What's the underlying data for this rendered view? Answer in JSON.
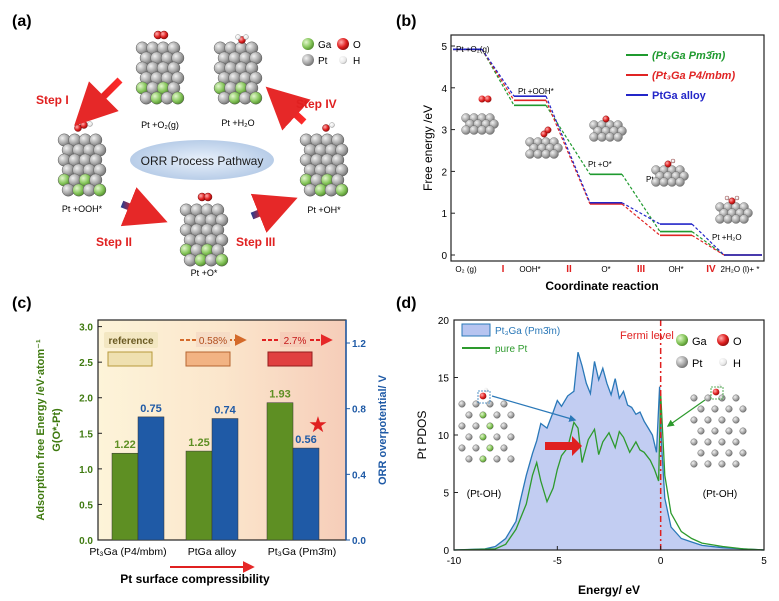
{
  "panels": {
    "a": {
      "label": "(a)",
      "center_text": "ORR Process Pathway",
      "steps": [
        "Step I",
        "Step II",
        "Step III",
        "Step IV"
      ],
      "states": [
        "Pt +O₂(g)",
        "Pt +H₂O",
        "Pt +OOH*",
        "Pt +O*",
        "Pt +OH*"
      ],
      "legend": [
        {
          "name": "Ga",
          "color": "#7dc35b"
        },
        {
          "name": "O",
          "color": "#d62020"
        },
        {
          "name": "Pt",
          "color": "#9a9a9a"
        },
        {
          "name": "H",
          "color": "#f2f2f2"
        }
      ]
    },
    "b": {
      "label": "(b)"
    },
    "c": {
      "label": "(c)",
      "tags": [
        "reference",
        "0.58%",
        "2.7%"
      ]
    },
    "d": {
      "label": "(d)"
    }
  },
  "chart_data": [
    {
      "id": "b",
      "type": "line",
      "xlabel": "Coordinate reaction",
      "ylabel": "Free energy /eV",
      "ylim": [
        0,
        5
      ],
      "yticks": [
        0,
        1,
        2,
        3,
        4,
        5
      ],
      "categories": [
        "O₂ (g)",
        "OOH*",
        "O*",
        "OH*",
        "2H₂O (l)+ *"
      ],
      "step_labels": [
        "I",
        "II",
        "III",
        "IV"
      ],
      "state_labels": [
        "Pt +O₂(g)",
        "Pt +OOH*",
        "Pt +O*",
        "Pt +OH*",
        "Pt +H₂O"
      ],
      "series": [
        {
          "name": "(Pt₃Ga Pm3̄m)",
          "color": "#1f9a2f",
          "values": [
            4.92,
            3.58,
            1.93,
            0.56,
            0
          ]
        },
        {
          "name": "(Pt₃Ga P4/mbm)",
          "color": "#e02424",
          "values": [
            4.92,
            3.7,
            1.22,
            0.47,
            0
          ]
        },
        {
          "name": "PtGa alloy",
          "color": "#2326c8",
          "values": [
            4.92,
            3.8,
            1.25,
            0.74,
            0
          ]
        }
      ],
      "legend_position": "top-right"
    },
    {
      "id": "c",
      "type": "bar",
      "xlabel": "Pt surface compressibility",
      "ylabel": "Adsorption free Energy /eV·atom⁻¹",
      "ylabel_prefix": "G(O*-Pt)",
      "y2label": "ORR overpotential/ V",
      "categories": [
        "Pt₃Ga (P4/mbm)",
        "PtGa alloy",
        "Pt₃Ga (Pm3̄m)"
      ],
      "ylim": [
        0,
        3.0
      ],
      "yticks": [
        "0.0",
        "0.5",
        "1.0",
        "1.5",
        "2.0",
        "2.5",
        "3.0"
      ],
      "y2lim": [
        0,
        1.3
      ],
      "y2ticks": [
        "0.0",
        "0.4",
        "0.8",
        "1.2"
      ],
      "series": [
        {
          "name": "G(O*-Pt)",
          "axis": "left",
          "color": "#5e8f23",
          "values": [
            1.22,
            1.25,
            1.93
          ],
          "labels": [
            "1.22",
            "1.25",
            "1.93"
          ]
        },
        {
          "name": "ORR overpotential",
          "axis": "right",
          "color": "#1f5aa6",
          "values": [
            0.75,
            0.74,
            0.56
          ],
          "labels": [
            "0.75",
            "0.74",
            "0.56"
          ]
        }
      ]
    },
    {
      "id": "d",
      "type": "line",
      "xlabel": "Energy/ eV",
      "ylabel": "Pt PDOS",
      "xlim": [
        -10,
        5
      ],
      "ylim": [
        0,
        20
      ],
      "xticks": [
        -10,
        -5,
        0,
        5
      ],
      "yticks": [
        0,
        5,
        10,
        15,
        20
      ],
      "annotation": "Fermi level",
      "insets": [
        "(Pt-OH)",
        "(Pt-OH)"
      ],
      "legend": [
        "Pt₃Ga (Pm3̄m)",
        "pure Pt"
      ],
      "atom_legend": [
        "Ga",
        "O",
        "Pt",
        "H"
      ],
      "series": [
        {
          "name": "Pt₃Ga (Pm3̄m)",
          "color": "#2a78b8",
          "fill": "#b7c4f0",
          "x": [
            -10,
            -8.5,
            -8,
            -7.5,
            -7,
            -6.8,
            -6.5,
            -6.2,
            -6,
            -5.8,
            -5.5,
            -5.2,
            -5,
            -4.8,
            -4.5,
            -4.2,
            -4,
            -3.8,
            -3.6,
            -3.4,
            -3.2,
            -3,
            -2.8,
            -2.6,
            -2.4,
            -2.2,
            -2,
            -1.8,
            -1.6,
            -1.4,
            -1.2,
            -1,
            -0.8,
            -0.6,
            -0.4,
            -0.2,
            -0.05,
            0.05,
            0.2,
            0.5,
            1,
            1.5,
            2,
            3,
            4,
            5
          ],
          "y": [
            0,
            0.1,
            0.3,
            1.0,
            2.5,
            4.2,
            6.5,
            8.4,
            9.5,
            11.0,
            10.6,
            12.0,
            13.0,
            12.5,
            13.4,
            13.8,
            17.2,
            16.0,
            14.5,
            13.6,
            16.4,
            14.8,
            15.8,
            14.5,
            13.5,
            14.9,
            13.2,
            13.8,
            12.6,
            12.4,
            11.8,
            12.0,
            11.2,
            10.6,
            10.0,
            8.5,
            14.2,
            9.0,
            4.5,
            2.0,
            1.0,
            0.7,
            0.4,
            0.2,
            0.1,
            0
          ]
        },
        {
          "name": "pure Pt",
          "color": "#2d9a2d",
          "x": [
            -10,
            -8,
            -7.5,
            -7,
            -6.5,
            -6.2,
            -6,
            -5.8,
            -5.5,
            -5.2,
            -5,
            -4.8,
            -4.5,
            -4.2,
            -4,
            -3.8,
            -3.5,
            -3.2,
            -3,
            -2.8,
            -2.5,
            -2.2,
            -2,
            -1.8,
            -1.5,
            -1.2,
            -1,
            -0.8,
            -0.5,
            -0.3,
            -0.1,
            0,
            0.2,
            0.5,
            1,
            1.5,
            2,
            3,
            4,
            5
          ],
          "y": [
            0,
            0.1,
            0.5,
            1.8,
            4.0,
            6.5,
            7.6,
            6.0,
            4.2,
            5.4,
            7.0,
            8.2,
            8.9,
            11.1,
            10.6,
            7.6,
            9.6,
            10.5,
            8.3,
            9.4,
            10.2,
            8.9,
            10.3,
            9.8,
            8.5,
            9.4,
            8.7,
            8.5,
            7.8,
            7.0,
            6.0,
            13.6,
            6.5,
            3.2,
            1.6,
            1.0,
            0.6,
            0.3,
            0.1,
            0
          ]
        }
      ]
    }
  ]
}
